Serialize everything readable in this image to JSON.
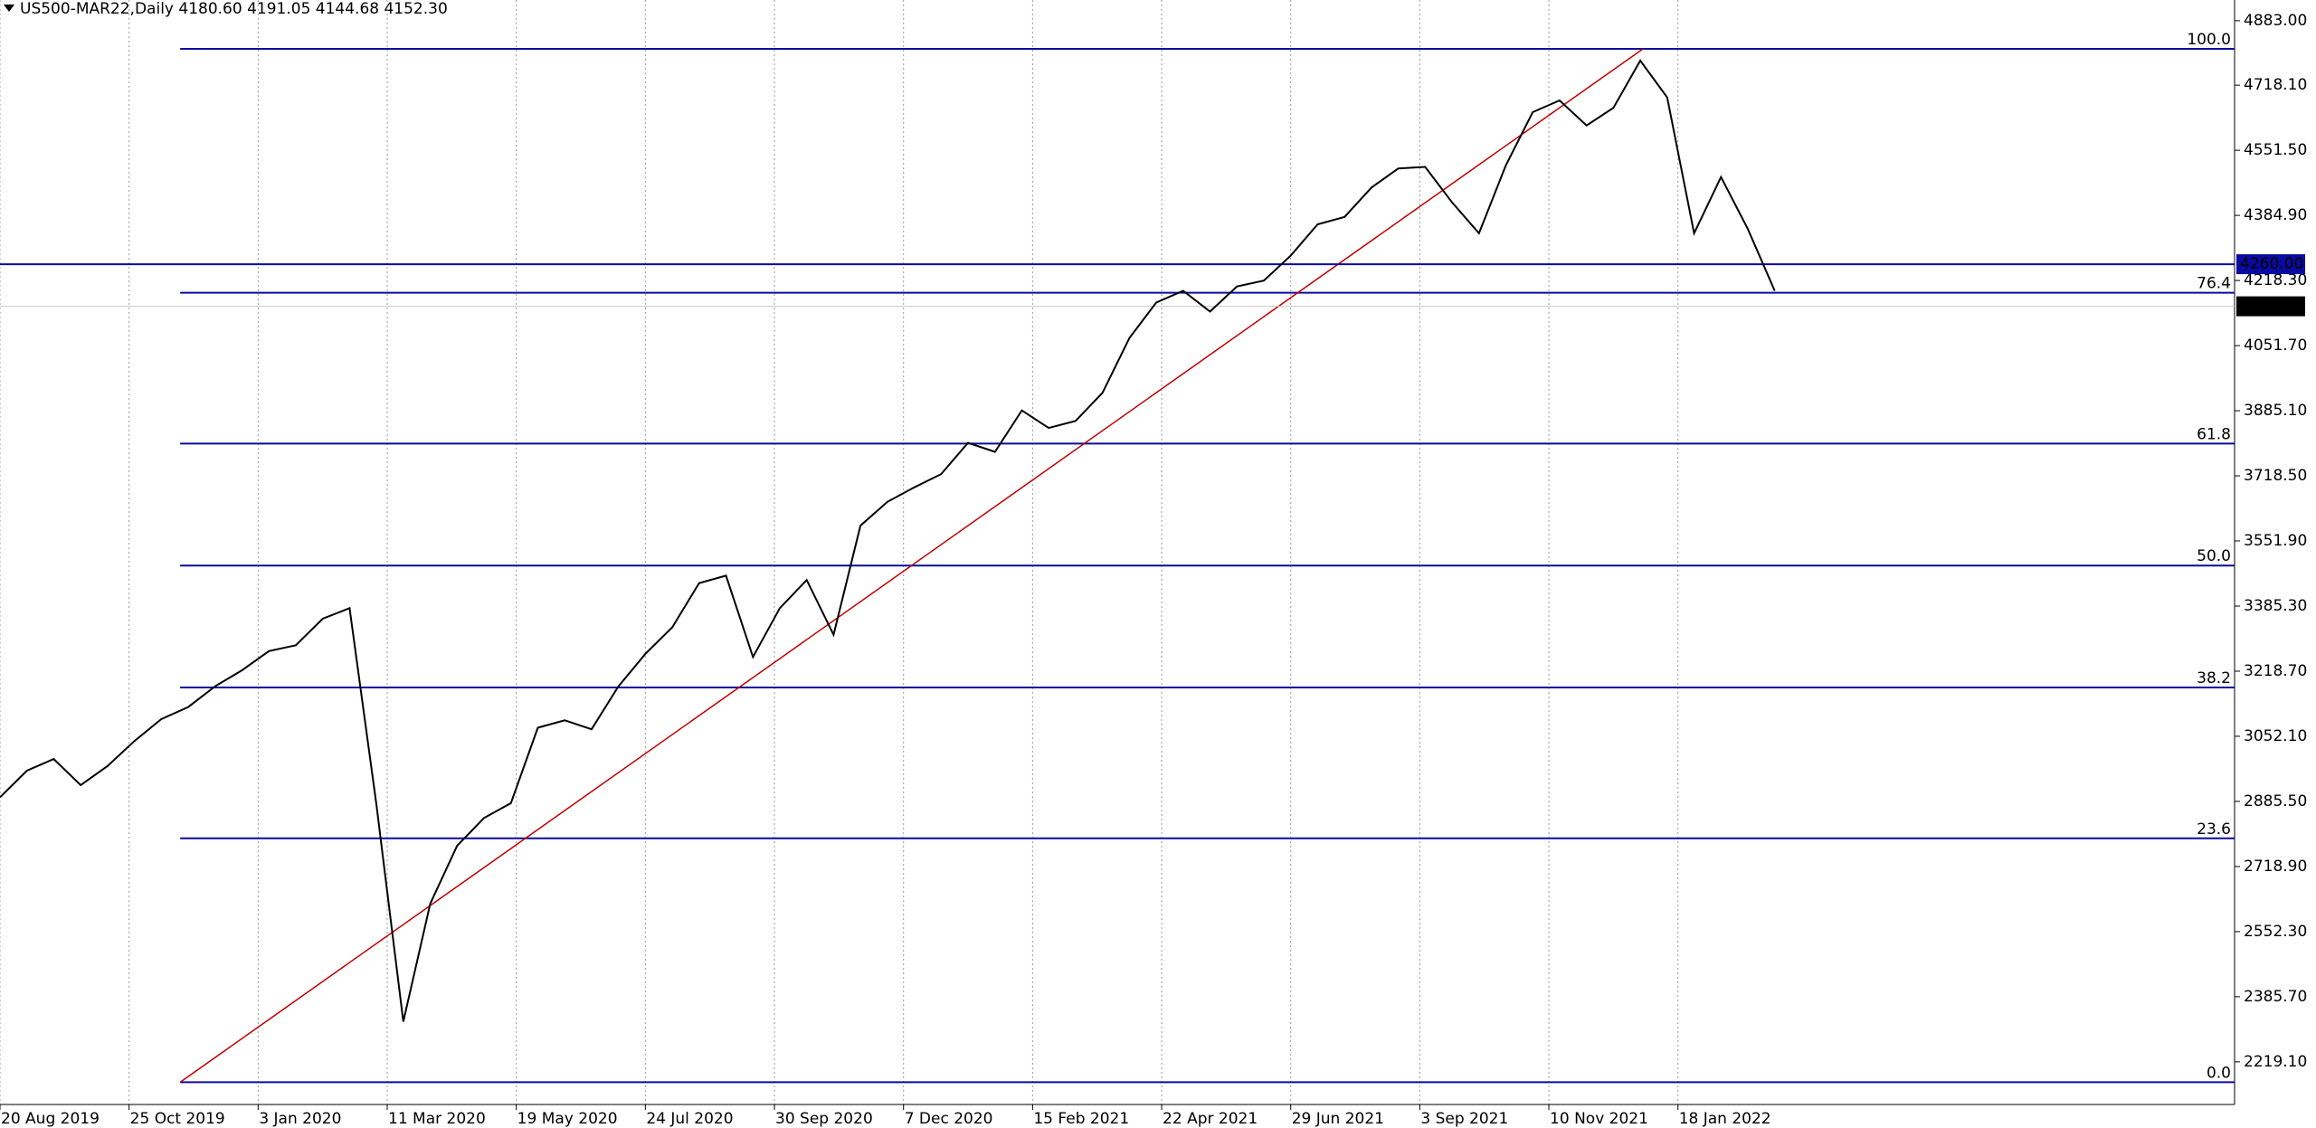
{
  "chart_data": {
    "type": "line",
    "title": "US500-MAR22,Daily  4180.60 4191.05 4144.68 4152.30",
    "xlim": [
      0,
      831
    ],
    "xticks": [
      {
        "value": 0,
        "label": "20 Aug 2019"
      },
      {
        "value": 48,
        "label": "25 Oct 2019"
      },
      {
        "value": 96,
        "label": "3 Jan 2020"
      },
      {
        "value": 144,
        "label": "11 Mar 2020"
      },
      {
        "value": 192,
        "label": "19 May 2020"
      },
      {
        "value": 240,
        "label": "24 Jul 2020"
      },
      {
        "value": 288,
        "label": "30 Sep 2020"
      },
      {
        "value": 336,
        "label": "7 Dec 2020"
      },
      {
        "value": 384,
        "label": "15 Feb 2021"
      },
      {
        "value": 432,
        "label": "22 Apr 2021"
      },
      {
        "value": 480,
        "label": "29 Jun 2021"
      },
      {
        "value": 528,
        "label": "3 Sep 2021"
      },
      {
        "value": 576,
        "label": "10 Nov 2021"
      },
      {
        "value": 624,
        "label": "18 Jan 2022"
      }
    ],
    "ylim": [
      2110,
      4936
    ],
    "yticks": [
      {
        "value": 4883,
        "label": "4883.00"
      },
      {
        "value": 4718.1,
        "label": "4718.10"
      },
      {
        "value": 4551.5,
        "label": "4551.50"
      },
      {
        "value": 4384.9,
        "label": "4384.90"
      },
      {
        "value": 4218.3,
        "label": "4218.30"
      },
      {
        "value": 4051.7,
        "label": "4051.70"
      },
      {
        "value": 3885.1,
        "label": "3885.10"
      },
      {
        "value": 3718.5,
        "label": "3718.50"
      },
      {
        "value": 3551.9,
        "label": "3551.90"
      },
      {
        "value": 3385.3,
        "label": "3385.30"
      },
      {
        "value": 3218.7,
        "label": "3218.70"
      },
      {
        "value": 3052.1,
        "label": "3052.10"
      },
      {
        "value": 2885.5,
        "label": "2885.50"
      },
      {
        "value": 2718.9,
        "label": "2718.90"
      },
      {
        "value": 2552.3,
        "label": "2552.30"
      },
      {
        "value": 2385.7,
        "label": "2385.70"
      },
      {
        "value": 2219.1,
        "label": "2219.10"
      }
    ],
    "series": [
      {
        "name": "US500-MAR22",
        "color": "#000000",
        "values": [
          2896,
          2964,
          2994,
          2927,
          2976,
          3040,
          3096,
          3127,
          3180,
          3221,
          3270,
          3285,
          3353,
          3380,
          2877,
          2322,
          2624,
          2772,
          2843,
          2881,
          3074,
          3093,
          3070,
          3180,
          3263,
          3331,
          3444,
          3463,
          3255,
          3380,
          3452,
          3312,
          3591,
          3652,
          3689,
          3723,
          3803,
          3780,
          3886,
          3841,
          3859,
          3931,
          4071,
          4162,
          4192,
          4139,
          4203,
          4218,
          4282,
          4362,
          4381,
          4456,
          4505,
          4509,
          4418,
          4339,
          4513,
          4649,
          4679,
          4615,
          4660,
          4781,
          4687,
          4339,
          4483,
          4350,
          4192
        ]
      }
    ],
    "fibo": {
      "x": [
        67,
        611
      ],
      "prices": [
        2167,
        4811
      ],
      "color": "#0a0aa0",
      "trend_color": "#c00000",
      "levels": [
        {
          "value": 100,
          "label": "100.0"
        },
        76.4,
        61.8,
        {
          "value": 50,
          "label": "50.0"
        },
        38.2,
        23.6,
        {
          "value": 0,
          "label": "0.0"
        }
      ]
    },
    "hline": {
      "value": 4260,
      "label": "4260.00",
      "color": "#0a0aa0"
    },
    "bid": {
      "value": 4152.3,
      "label": "4152.30",
      "color": "#000000"
    },
    "grid": true
  }
}
